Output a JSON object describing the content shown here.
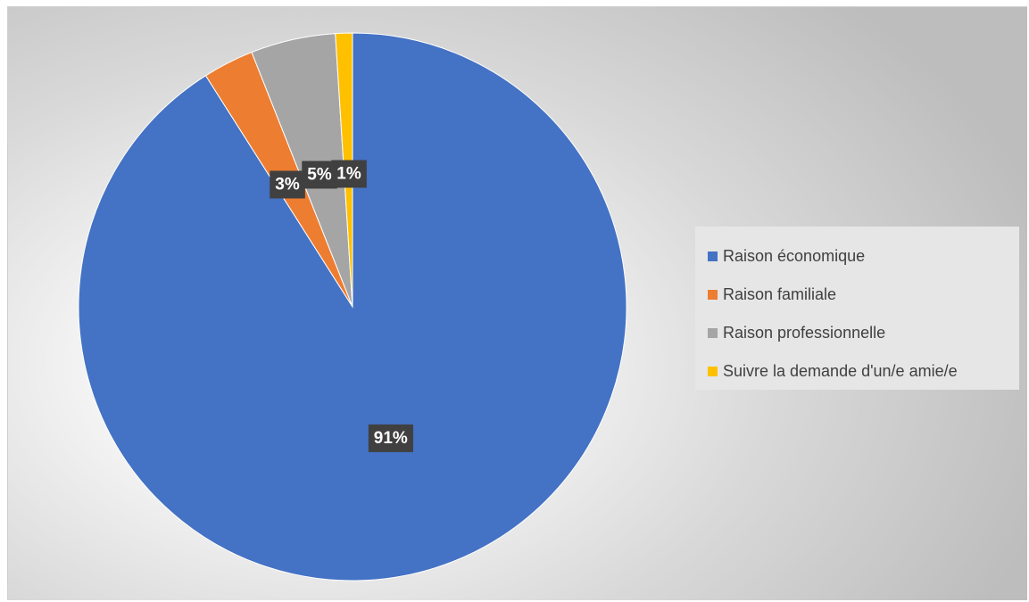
{
  "chart_data": {
    "type": "pie",
    "title": "",
    "series": [
      {
        "values": [
          91,
          3,
          5,
          1
        ],
        "categories": [
          "Raison économique",
          "Raison familiale",
          "Raison professionnelle",
          "Suivre la demande d'un/e amie/e"
        ]
      }
    ],
    "slices": [
      {
        "label": "Raison économique",
        "value": 91,
        "display": "91%",
        "color": "#4472C4"
      },
      {
        "label": "Raison familiale",
        "value": 3,
        "display": "3%",
        "color": "#ED7D31"
      },
      {
        "label": "Raison professionnelle",
        "value": 5,
        "display": "5%",
        "color": "#A5A5A5"
      },
      {
        "label": "Suivre la demande d'un/e amie/e",
        "value": 1,
        "display": "1%",
        "color": "#FFC000"
      }
    ],
    "start_angle_deg": 0,
    "direction": "clockwise",
    "legend_position": "right",
    "data_labels": "percent"
  },
  "legend": {
    "items": [
      {
        "label": "Raison économique",
        "color": "#4472C4"
      },
      {
        "label": "Raison familiale",
        "color": "#ED7D31"
      },
      {
        "label": "Raison professionnelle",
        "color": "#A5A5A5"
      },
      {
        "label": "Suivre la demande d'un/e amie/e",
        "color": "#FFC000"
      }
    ]
  },
  "colors": {
    "label_box": "#404040",
    "label_text": "#FFFFFF",
    "legend_background": "#E6E6E6"
  }
}
